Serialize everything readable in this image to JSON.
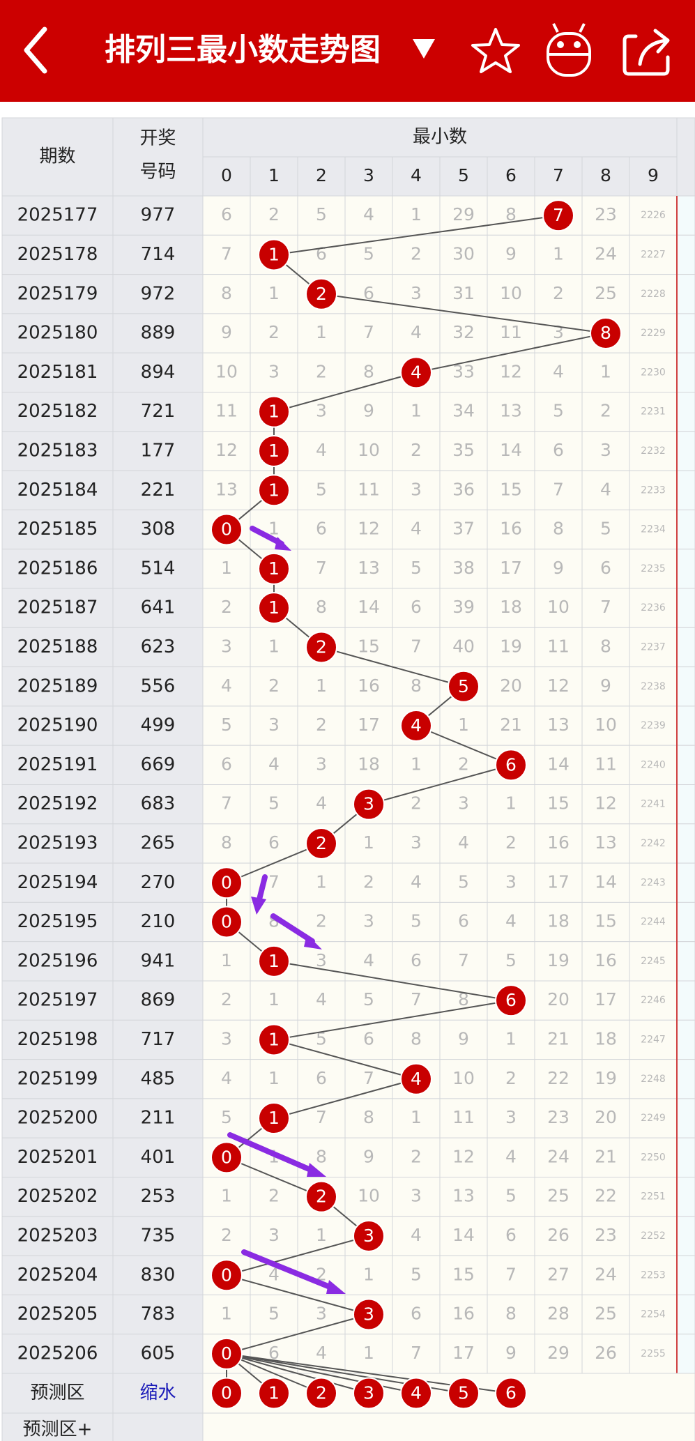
{
  "header": {
    "title": "排列三最小数走势图"
  },
  "table": {
    "columns": {
      "period": "期数",
      "number": [
        "开奖",
        "号码"
      ],
      "group": "最小数",
      "digits": [
        0,
        1,
        2,
        3,
        4,
        5,
        6,
        7,
        8,
        9
      ]
    },
    "rows": [
      {
        "period": "2025177",
        "number": "977",
        "min": 7,
        "cells": [
          6,
          2,
          5,
          4,
          1,
          29,
          8,
          7,
          23,
          2226
        ]
      },
      {
        "period": "2025178",
        "number": "714",
        "min": 1,
        "cells": [
          7,
          1,
          6,
          5,
          2,
          30,
          9,
          1,
          24,
          2227
        ]
      },
      {
        "period": "2025179",
        "number": "972",
        "min": 2,
        "cells": [
          8,
          1,
          2,
          6,
          3,
          31,
          10,
          2,
          25,
          2228
        ]
      },
      {
        "period": "2025180",
        "number": "889",
        "min": 8,
        "cells": [
          9,
          2,
          1,
          7,
          4,
          32,
          11,
          3,
          8,
          2229
        ]
      },
      {
        "period": "2025181",
        "number": "894",
        "min": 4,
        "cells": [
          10,
          3,
          2,
          8,
          4,
          33,
          12,
          4,
          1,
          2230
        ]
      },
      {
        "period": "2025182",
        "number": "721",
        "min": 1,
        "cells": [
          11,
          1,
          3,
          9,
          1,
          34,
          13,
          5,
          2,
          2231
        ]
      },
      {
        "period": "2025183",
        "number": "177",
        "min": 1,
        "cells": [
          12,
          1,
          4,
          10,
          2,
          35,
          14,
          6,
          3,
          2232
        ]
      },
      {
        "period": "2025184",
        "number": "221",
        "min": 1,
        "cells": [
          13,
          1,
          5,
          11,
          3,
          36,
          15,
          7,
          4,
          2233
        ]
      },
      {
        "period": "2025185",
        "number": "308",
        "min": 0,
        "cells": [
          0,
          1,
          6,
          12,
          4,
          37,
          16,
          8,
          5,
          2234
        ]
      },
      {
        "period": "2025186",
        "number": "514",
        "min": 1,
        "cells": [
          1,
          1,
          7,
          13,
          5,
          38,
          17,
          9,
          6,
          2235
        ]
      },
      {
        "period": "2025187",
        "number": "641",
        "min": 1,
        "cells": [
          2,
          1,
          8,
          14,
          6,
          39,
          18,
          10,
          7,
          2236
        ]
      },
      {
        "period": "2025188",
        "number": "623",
        "min": 2,
        "cells": [
          3,
          1,
          2,
          15,
          7,
          40,
          19,
          11,
          8,
          2237
        ]
      },
      {
        "period": "2025189",
        "number": "556",
        "min": 5,
        "cells": [
          4,
          2,
          1,
          16,
          8,
          5,
          20,
          12,
          9,
          2238
        ]
      },
      {
        "period": "2025190",
        "number": "499",
        "min": 4,
        "cells": [
          5,
          3,
          2,
          17,
          4,
          1,
          21,
          13,
          10,
          2239
        ]
      },
      {
        "period": "2025191",
        "number": "669",
        "min": 6,
        "cells": [
          6,
          4,
          3,
          18,
          1,
          2,
          6,
          14,
          11,
          2240
        ]
      },
      {
        "period": "2025192",
        "number": "683",
        "min": 3,
        "cells": [
          7,
          5,
          4,
          3,
          2,
          3,
          1,
          15,
          12,
          2241
        ]
      },
      {
        "period": "2025193",
        "number": "265",
        "min": 2,
        "cells": [
          8,
          6,
          2,
          1,
          3,
          4,
          2,
          16,
          13,
          2242
        ]
      },
      {
        "period": "2025194",
        "number": "270",
        "min": 0,
        "cells": [
          0,
          7,
          1,
          2,
          4,
          5,
          3,
          17,
          14,
          2243
        ]
      },
      {
        "period": "2025195",
        "number": "210",
        "min": 0,
        "cells": [
          0,
          8,
          2,
          3,
          5,
          6,
          4,
          18,
          15,
          2244
        ]
      },
      {
        "period": "2025196",
        "number": "941",
        "min": 1,
        "cells": [
          1,
          1,
          3,
          4,
          6,
          7,
          5,
          19,
          16,
          2245
        ]
      },
      {
        "period": "2025197",
        "number": "869",
        "min": 6,
        "cells": [
          2,
          1,
          4,
          5,
          7,
          8,
          6,
          20,
          17,
          2246
        ]
      },
      {
        "period": "2025198",
        "number": "717",
        "min": 1,
        "cells": [
          3,
          1,
          5,
          6,
          8,
          9,
          1,
          21,
          18,
          2247
        ]
      },
      {
        "period": "2025199",
        "number": "485",
        "min": 4,
        "cells": [
          4,
          1,
          6,
          7,
          4,
          10,
          2,
          22,
          19,
          2248
        ]
      },
      {
        "period": "2025200",
        "number": "211",
        "min": 1,
        "cells": [
          5,
          1,
          7,
          8,
          1,
          11,
          3,
          23,
          20,
          2249
        ]
      },
      {
        "period": "2025201",
        "number": "401",
        "min": 0,
        "cells": [
          0,
          1,
          8,
          9,
          2,
          12,
          4,
          24,
          21,
          2250
        ]
      },
      {
        "period": "2025202",
        "number": "253",
        "min": 2,
        "cells": [
          1,
          2,
          2,
          10,
          3,
          13,
          5,
          25,
          22,
          2251
        ]
      },
      {
        "period": "2025203",
        "number": "735",
        "min": 3,
        "cells": [
          2,
          3,
          1,
          3,
          4,
          14,
          6,
          26,
          23,
          2252
        ]
      },
      {
        "period": "2025204",
        "number": "830",
        "min": 0,
        "cells": [
          0,
          4,
          2,
          1,
          5,
          15,
          7,
          27,
          24,
          2253
        ]
      },
      {
        "period": "2025205",
        "number": "783",
        "min": 3,
        "cells": [
          1,
          5,
          3,
          3,
          6,
          16,
          8,
          28,
          25,
          2254
        ]
      },
      {
        "period": "2025206",
        "number": "605",
        "min": 0,
        "cells": [
          0,
          6,
          4,
          1,
          7,
          17,
          9,
          29,
          26,
          2255
        ]
      }
    ],
    "prediction": {
      "label": "预测区",
      "tag": "缩水",
      "balls": [
        0,
        1,
        2,
        3,
        4,
        5,
        6
      ]
    },
    "extra": {
      "label": "预测区+"
    }
  }
}
